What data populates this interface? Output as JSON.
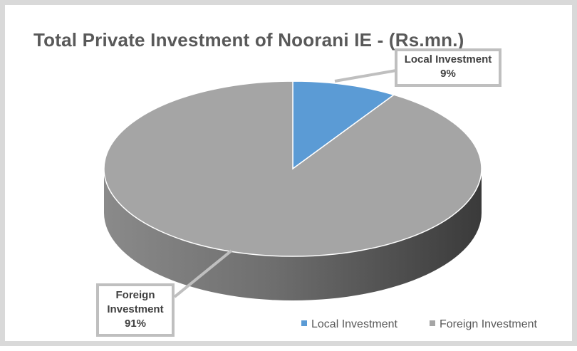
{
  "chart_data": {
    "type": "pie",
    "title": "Total Private Investment of Noorani IE - (Rs.mn.)",
    "categories": [
      "Local Investment",
      "Foreign Investment"
    ],
    "values": [
      9,
      91
    ],
    "unit": "%",
    "colors": [
      "#5b9bd5",
      "#a5a5a5"
    ],
    "style": "3d",
    "legend_position": "bottom-right",
    "data_labels": [
      {
        "name": "Local Investment",
        "value": "9%"
      },
      {
        "name": "Foreign Investment",
        "value": "91%"
      }
    ]
  },
  "legend": {
    "local": "Local Investment",
    "foreign": "Foreign Investment"
  },
  "callouts": {
    "local_name": "Local Investment",
    "local_value": "9%",
    "foreign_name_line1": "Foreign",
    "foreign_name_line2": "Investment",
    "foreign_value": "91%"
  }
}
